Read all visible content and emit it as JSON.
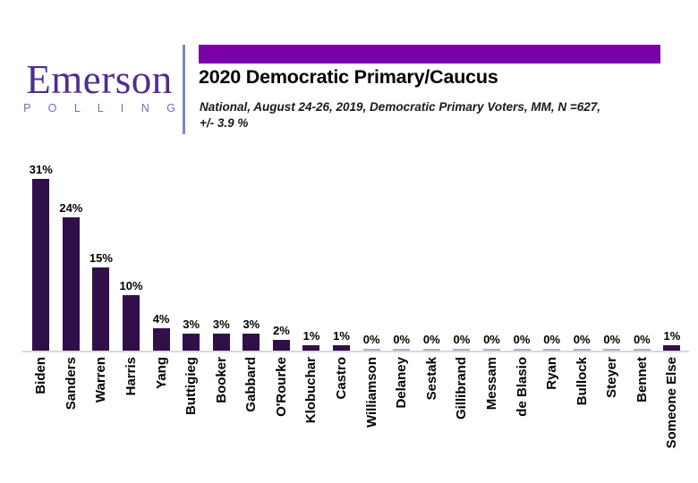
{
  "logo": {
    "brand": "Emerson",
    "sub_brand": "P O L L I N G"
  },
  "header": {
    "title": "2020 Democratic Primary/Caucus",
    "subtitle_line1": "National, August 24-26, 2019, Democratic Primary Voters, MM, N =627,",
    "subtitle_line2": "+/- 3.9 %"
  },
  "colors": {
    "bar": "#31104a",
    "zero_bar": "#b9aac8",
    "accent_bar": "#7a00a8",
    "logo_text": "#4f2d91",
    "logo_sub": "#7a68b2",
    "divider": "#7e87c4",
    "axis_line": "#d9d9d9"
  },
  "chart_data": {
    "type": "bar",
    "title": "2020 Democratic Primary/Caucus",
    "subtitle": "National, August 24-26, 2019, Democratic Primary Voters, MM, N =627, +/- 3.9 %",
    "categories": [
      "Biden",
      "Sanders",
      "Warren",
      "Harris",
      "Yang",
      "Buttigieg",
      "Booker",
      "Gabbard",
      "O'Rourke",
      "Klobuchar",
      "Castro",
      "Williamson",
      "Delaney",
      "Sestak",
      "Gillibrand",
      "Messam",
      "de Blasio",
      "Ryan",
      "Bullock",
      "Steyer",
      "Bennet",
      "Someone Else"
    ],
    "values": [
      31,
      24,
      15,
      10,
      4,
      3,
      3,
      3,
      2,
      1,
      1,
      0,
      0,
      0,
      0,
      0,
      0,
      0,
      0,
      0,
      0,
      1
    ],
    "value_labels": [
      "31%",
      "24%",
      "15%",
      "10%",
      "4%",
      "3%",
      "3%",
      "3%",
      "2%",
      "1%",
      "1%",
      "0%",
      "0%",
      "0%",
      "0%",
      "0%",
      "0%",
      "0%",
      "0%",
      "0%",
      "0%",
      "1%"
    ],
    "xlabel": "",
    "ylabel": "",
    "ylim": [
      0,
      33
    ],
    "grid": false,
    "legend": false,
    "data_labels": true,
    "label_rotation_deg": 90
  }
}
